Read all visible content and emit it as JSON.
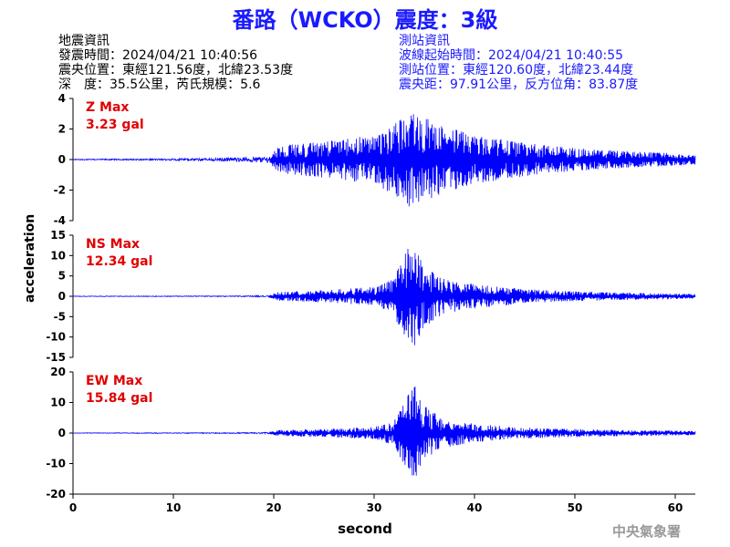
{
  "title": "番路（WCKO）震度：3級",
  "quake_info": {
    "heading": "地震資訊",
    "time": "發震時間：2024/04/21 10:40:56",
    "epicenter": "震央位置：東經121.56度，北緯23.53度",
    "depth_magnitude": "深　度：35.5公里，芮氏規模：5.6"
  },
  "station_info": {
    "heading": "測站資訊",
    "wave_start": "波線起始時間：2024/04/21 10:40:55",
    "location": "測站位置：東經120.60度，北緯23.44度",
    "distance": "震央距：97.91公里，反方位角：83.87度"
  },
  "agency": "中央氣象署",
  "colors": {
    "title": "#1a1aff",
    "trace": "#0000ff",
    "max_label": "#e00000",
    "agency": "#9a9a9a"
  },
  "chart_data": [
    {
      "type": "line",
      "name": "Z",
      "max_label": "Z Max",
      "max_value_label": "3.23 gal",
      "max_value": 3.23,
      "ylim": [
        -4,
        4
      ],
      "yticks": [
        -4,
        -2,
        0,
        2,
        4
      ],
      "xlim": [
        0,
        62
      ],
      "pre_noise": 0.03,
      "envelope": [
        [
          0,
          0.04
        ],
        [
          8,
          0.06
        ],
        [
          14,
          0.12
        ],
        [
          17,
          0.18
        ],
        [
          19.5,
          0.3
        ],
        [
          20.5,
          0.9
        ],
        [
          25,
          1.2
        ],
        [
          30,
          1.6
        ],
        [
          32,
          2.3
        ],
        [
          33.5,
          3.2
        ],
        [
          35,
          2.8
        ],
        [
          37,
          2.2
        ],
        [
          40,
          1.6
        ],
        [
          45,
          1.1
        ],
        [
          50,
          0.75
        ],
        [
          55,
          0.55
        ],
        [
          62,
          0.35
        ]
      ]
    },
    {
      "type": "line",
      "name": "NS",
      "max_label": "NS Max",
      "max_value_label": "12.34 gal",
      "max_value": 12.34,
      "ylim": [
        -15,
        15
      ],
      "yticks": [
        -15,
        -10,
        -5,
        0,
        5,
        10,
        15
      ],
      "xlim": [
        0,
        62
      ],
      "pre_noise": 0.06,
      "envelope": [
        [
          0,
          0.08
        ],
        [
          15,
          0.12
        ],
        [
          19.5,
          0.25
        ],
        [
          20.5,
          1.1
        ],
        [
          25,
          1.5
        ],
        [
          30,
          2.3
        ],
        [
          32,
          4.5
        ],
        [
          33,
          11.5
        ],
        [
          34,
          12.3
        ],
        [
          35,
          7.5
        ],
        [
          37,
          4.2
        ],
        [
          40,
          3
        ],
        [
          45,
          1.8
        ],
        [
          50,
          1.2
        ],
        [
          55,
          0.9
        ],
        [
          62,
          0.6
        ]
      ]
    },
    {
      "type": "line",
      "name": "EW",
      "max_label": "EW Max",
      "max_value_label": "15.84 gal",
      "max_value": 15.84,
      "ylim": [
        -20,
        20
      ],
      "yticks": [
        -20,
        -10,
        0,
        10,
        20
      ],
      "xlim": [
        0,
        62
      ],
      "pre_noise": 0.07,
      "envelope": [
        [
          0,
          0.1
        ],
        [
          15,
          0.18
        ],
        [
          19.5,
          0.3
        ],
        [
          20.5,
          1
        ],
        [
          25,
          1.3
        ],
        [
          30,
          2
        ],
        [
          32,
          4
        ],
        [
          33,
          10.5
        ],
        [
          34,
          15.8
        ],
        [
          35,
          9
        ],
        [
          37,
          4.8
        ],
        [
          40,
          3
        ],
        [
          45,
          1.8
        ],
        [
          50,
          1.3
        ],
        [
          55,
          1
        ],
        [
          62,
          0.7
        ]
      ]
    }
  ],
  "x_axis": {
    "label": "second",
    "ticks": [
      0,
      10,
      20,
      30,
      40,
      50,
      60
    ]
  },
  "y_axis": {
    "label": "acceleration"
  }
}
